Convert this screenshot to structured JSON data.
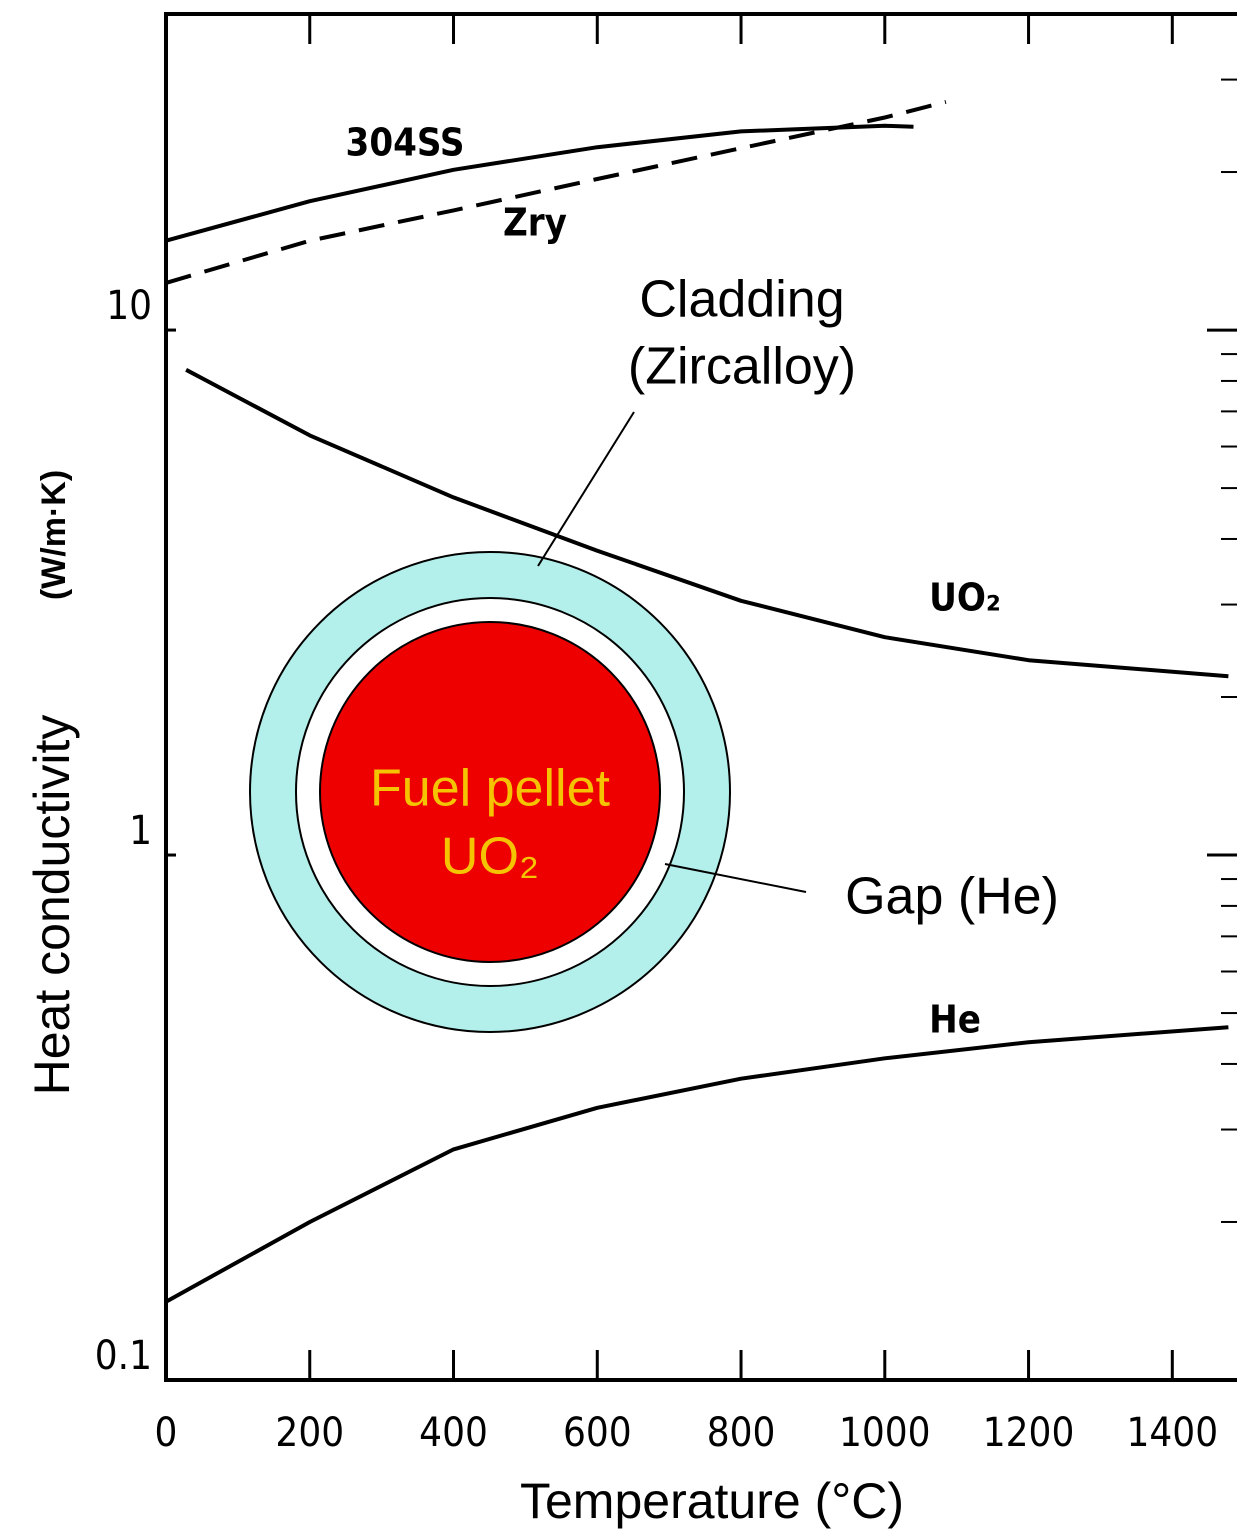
{
  "chart_data": {
    "type": "line",
    "x_label": "Temperature (°C)",
    "y_label": "Heat conductivity",
    "y_unit": "(W/m·K)",
    "xlim": [
      0,
      1490
    ],
    "ylim": [
      0.1,
      40
    ],
    "log_y": true,
    "xticks": [
      0,
      200,
      400,
      600,
      800,
      1000,
      1200,
      1400
    ],
    "yticks": [
      0.1,
      1,
      10
    ],
    "yminorticks": [
      0.2,
      0.3,
      0.4,
      0.5,
      0.6,
      0.7,
      0.8,
      0.9,
      2,
      3,
      4,
      5,
      6,
      7,
      8,
      9,
      20,
      30
    ],
    "series": [
      {
        "name": "304SS",
        "color": "#000000",
        "dash": false,
        "x": [
          0,
          200,
          400,
          600,
          800,
          1000,
          1040
        ],
        "values": [
          14.8,
          17.6,
          20.2,
          22.3,
          23.9,
          24.5,
          24.4
        ]
      },
      {
        "name": "Zry",
        "color": "#000000",
        "dash": true,
        "x": [
          0,
          200,
          400,
          600,
          800,
          1000,
          1085
        ],
        "values": [
          12.3,
          14.8,
          16.9,
          19.4,
          22.2,
          25.4,
          27.2
        ]
      },
      {
        "name": "UO₂",
        "color": "#000000",
        "dash": false,
        "x": [
          28,
          200,
          400,
          600,
          800,
          1000,
          1200,
          1478
        ],
        "values": [
          8.4,
          6.3,
          4.8,
          3.8,
          3.05,
          2.6,
          2.35,
          2.19
        ]
      },
      {
        "name": "He",
        "color": "#000000",
        "dash": false,
        "x": [
          0,
          200,
          400,
          600,
          800,
          1000,
          1200,
          1478
        ],
        "values": [
          0.141,
          0.2,
          0.275,
          0.33,
          0.375,
          0.41,
          0.44,
          0.47
        ]
      }
    ],
    "annotations": {
      "cladding": [
        "Cladding",
        "(Zircalloy)"
      ],
      "gap": "Gap (He)",
      "pellet": [
        "Fuel pellet",
        "UO₂"
      ]
    }
  }
}
